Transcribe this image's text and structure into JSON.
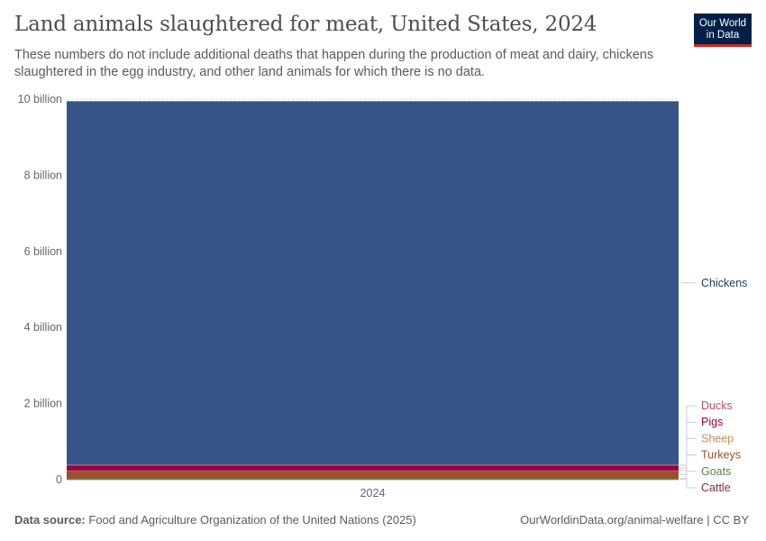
{
  "header": {
    "title": "Land animals slaughtered for meat, United States, 2024",
    "subtitle": "These numbers do not include additional deaths that happen during the production of meat and dairy, chickens slaughtered in the egg industry, and other land animals for which there is no data.",
    "logo_line1": "Our World",
    "logo_line2": "in Data"
  },
  "footer": {
    "source_label": "Data source:",
    "source_text": "Food and Agriculture Organization of the United Nations (2025)",
    "link_text": "OurWorldinData.org/animal-welfare",
    "license_text": "CC BY"
  },
  "chart_data": {
    "type": "area",
    "stacked": true,
    "categories": [
      "2024"
    ],
    "y_ticks": [
      {
        "value": 0,
        "label": "0"
      },
      {
        "value": 2000000000,
        "label": "2 billion"
      },
      {
        "value": 4000000000,
        "label": "4 billion"
      },
      {
        "value": 6000000000,
        "label": "6 billion"
      },
      {
        "value": 8000000000,
        "label": "8 billion"
      },
      {
        "value": 10000000000,
        "label": "10 billion"
      }
    ],
    "ylim": [
      0,
      10000000000
    ],
    "grid": true,
    "legend_placement": "right",
    "series": [
      {
        "name": "Cattle",
        "color": "#883039",
        "value": 33000000
      },
      {
        "name": "Goats",
        "color": "#578145",
        "value": 600000
      },
      {
        "name": "Turkeys",
        "color": "#9a5129",
        "value": 205000000
      },
      {
        "name": "Sheep",
        "color": "#bc8e5a",
        "value": 2000000
      },
      {
        "name": "Pigs",
        "color": "#970046",
        "value": 128000000
      },
      {
        "name": "Ducks",
        "color": "#c15065",
        "value": 27000000
      },
      {
        "name": "Chickens",
        "color": "#355588",
        "value": 9550000000
      }
    ]
  }
}
